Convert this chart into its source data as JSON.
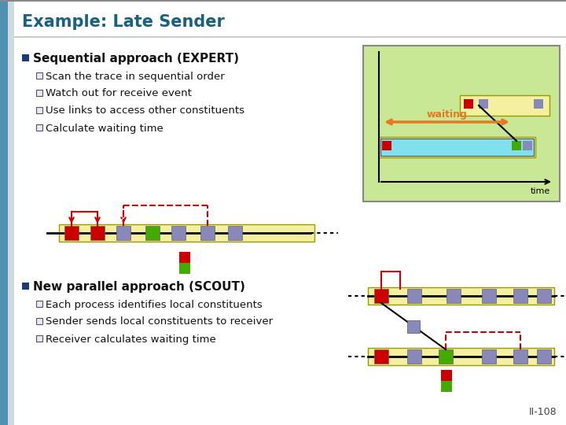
{
  "title": "Example: Late Sender",
  "title_color": "#1a6080",
  "bg_color": "#ffffff",
  "bullet1": "Sequential approach (EXPERT)",
  "sub1a": "Scan the trace in sequential order",
  "sub1b": "Watch out for receive event",
  "sub1c": "Use links to access other constituents",
  "sub1d": "Calculate waiting time",
  "bullet2": "New parallel approach (SCOUT)",
  "sub2a": "Each process identifies local constituents",
  "sub2b": "Sender sends local constituents to receiver",
  "sub2c": "Receiver calculates waiting time",
  "page_num": "II-108",
  "left_bar_color": "#3a7fa8",
  "green_bg": "#c8e896",
  "timeline_yellow": "#f5f0a0",
  "cyan_fill": "#80e0f0",
  "red_sq": "#cc0000",
  "green_sq": "#44aa00",
  "blue_sq": "#8888bb",
  "orange_arrow": "#e87820",
  "waiting_text": "waiting",
  "time_text": "time"
}
